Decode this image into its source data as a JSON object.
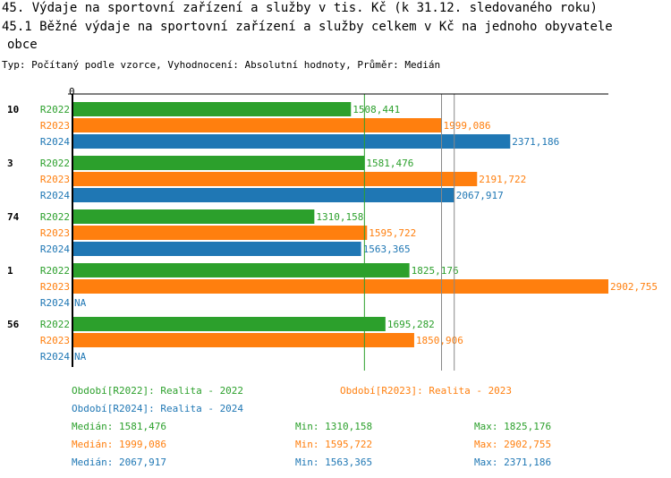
{
  "title": "45. Výdaje na sportovní zařízení a služby v tis. Kč (k 31.12. sledovaného roku)",
  "subtitle_line1": "45.1 Běžné výdaje na sportovní zařízení a služby celkem v Kč na jednoho obyvatele",
  "subtitle_line2": "obce",
  "info": "Typ: Počítaný podle vzorce, Vyhodnocení: Absolutní hodnoty, Průměr: Medián",
  "chart_data": {
    "type": "bar",
    "orientation": "horizontal",
    "xlim": [
      0,
      2902.755
    ],
    "axis_tick": "0",
    "categories": [
      "10",
      "3",
      "74",
      "1",
      "56"
    ],
    "series": [
      {
        "name": "R2022",
        "color": "#2ca02c",
        "values": [
          1508.441,
          1581.476,
          1310.158,
          1825.176,
          1695.282
        ],
        "labels": [
          "1508,441",
          "1581,476",
          "1310,158",
          "1825,176",
          "1695,282"
        ]
      },
      {
        "name": "R2023",
        "color": "#ff7f0e",
        "values": [
          1999.086,
          2191.722,
          1595.722,
          2902.755,
          1850.906
        ],
        "labels": [
          "1999,086",
          "2191,722",
          "1595,722",
          "2902,755",
          "1850,906"
        ]
      },
      {
        "name": "R2024",
        "color": "#1f77b4",
        "values": [
          2371.186,
          2067.917,
          1563.365,
          null,
          null
        ],
        "labels": [
          "2371,186",
          "2067,917",
          "1563,365",
          "NA",
          "NA"
        ]
      }
    ],
    "medians": [
      1581.476,
      1999.086,
      2067.917
    ]
  },
  "legend": {
    "r2022": "Období[R2022]: Realita - 2022",
    "r2023": "Období[R2023]: Realita - 2023",
    "r2024": "Období[R2024]: Realita - 2024"
  },
  "stats": [
    {
      "median": "Medián: 1581,476",
      "min": "Min: 1310,158",
      "max": "Max: 1825,176"
    },
    {
      "median": "Medián: 1999,086",
      "min": "Min: 1595,722",
      "max": "Max: 2902,755"
    },
    {
      "median": "Medián: 2067,917",
      "min": "Min: 1563,365",
      "max": "Max: 2371,186"
    }
  ]
}
